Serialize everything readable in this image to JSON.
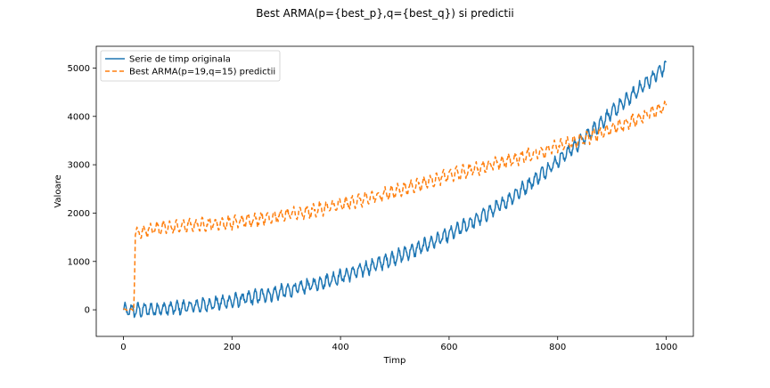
{
  "chart_data": {
    "type": "line",
    "title": "Best ARMA(p={best_p},q={best_q}) si predictii",
    "xlabel": "Timp",
    "ylabel": "Valoare",
    "xlim": [
      -50,
      1050
    ],
    "ylim": [
      -550,
      5450
    ],
    "xticks": [
      0,
      200,
      400,
      600,
      800,
      1000
    ],
    "yticks": [
      0,
      1000,
      2000,
      3000,
      4000,
      5000
    ],
    "legend_position": "top-left",
    "series": [
      {
        "name": "Serie de timp originala",
        "color": "#1f77b4",
        "style": "solid",
        "x_range": [
          0,
          1000
        ],
        "trend_points": [
          [
            0,
            -20
          ],
          [
            50,
            5
          ],
          [
            100,
            40
          ],
          [
            150,
            100
          ],
          [
            200,
            180
          ],
          [
            250,
            280
          ],
          [
            300,
            390
          ],
          [
            350,
            520
          ],
          [
            400,
            680
          ],
          [
            450,
            870
          ],
          [
            500,
            1080
          ],
          [
            550,
            1300
          ],
          [
            600,
            1560
          ],
          [
            650,
            1860
          ],
          [
            700,
            2200
          ],
          [
            750,
            2620
          ],
          [
            800,
            3080
          ],
          [
            850,
            3560
          ],
          [
            900,
            4080
          ],
          [
            950,
            4560
          ],
          [
            1000,
            5050
          ]
        ],
        "noise_amplitude": 120,
        "period": 12
      },
      {
        "name": "Best ARMA(p=19,q=15) predictii",
        "color": "#ff7f0e",
        "style": "dashed",
        "x_range": [
          0,
          1000
        ],
        "trend_points": [
          [
            0,
            0
          ],
          [
            19,
            0
          ],
          [
            22,
            1550
          ],
          [
            50,
            1680
          ],
          [
            100,
            1720
          ],
          [
            150,
            1770
          ],
          [
            200,
            1800
          ],
          [
            250,
            1880
          ],
          [
            300,
            1960
          ],
          [
            350,
            2050
          ],
          [
            400,
            2170
          ],
          [
            450,
            2300
          ],
          [
            500,
            2450
          ],
          [
            550,
            2620
          ],
          [
            600,
            2780
          ],
          [
            650,
            2920
          ],
          [
            700,
            3060
          ],
          [
            750,
            3200
          ],
          [
            800,
            3380
          ],
          [
            850,
            3530
          ],
          [
            900,
            3750
          ],
          [
            950,
            3950
          ],
          [
            1000,
            4220
          ]
        ],
        "noise_amplitude": 110,
        "period": 12
      }
    ]
  }
}
